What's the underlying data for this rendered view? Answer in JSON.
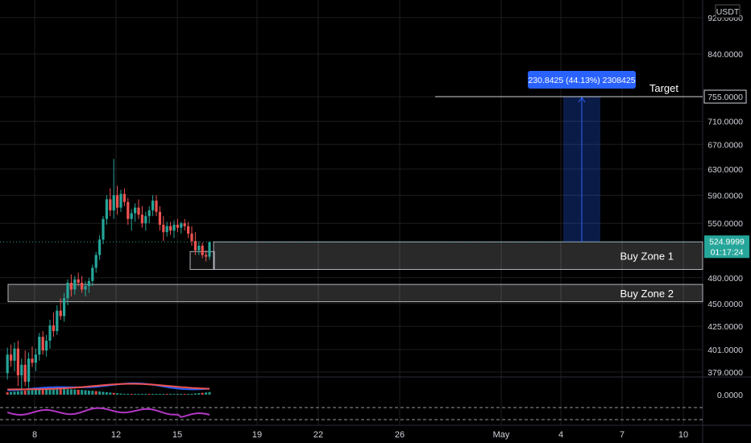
{
  "chart_data": {
    "type": "candlestick",
    "currency": "USDT",
    "last_price": "524.9999",
    "countdown": "01:17:24",
    "price_axis": {
      "labels": [
        "920.0000",
        "840.0000",
        "755.0000",
        "710.0000",
        "670.0000",
        "630.0000",
        "590.0000",
        "550.0000",
        "480.0000",
        "450.0000",
        "425.0000",
        "401.0000",
        "379.0000"
      ],
      "highlighted": "755.0000",
      "scale": "log"
    },
    "oscillator_axis_label": "0.0000",
    "date_axis": [
      "8",
      "12",
      "15",
      "19",
      "22",
      "26",
      "May",
      "4",
      "7",
      "10"
    ],
    "annotations": {
      "target_label": "Target",
      "target_price": 755,
      "measure_label": "230.8425 (44.13%) 2308425",
      "zones": [
        {
          "label": "Buy Zone 1",
          "top": 524.9999,
          "bottom": 490
        },
        {
          "label": "Buy Zone 2",
          "top": 472,
          "bottom": 452
        }
      ]
    },
    "grid": true,
    "colors": {
      "background": "#000000",
      "grid": "#1e1e1e",
      "up": "#26a69a",
      "down": "#ef5350",
      "measure": "#2962ff",
      "price_badge": "#26a69a",
      "oscillator": "#b237c4"
    },
    "candles": [
      {
        "o": 378,
        "h": 403,
        "l": 372,
        "c": 396
      },
      {
        "o": 396,
        "h": 406,
        "l": 384,
        "c": 390
      },
      {
        "o": 390,
        "h": 408,
        "l": 380,
        "c": 402
      },
      {
        "o": 402,
        "h": 410,
        "l": 366,
        "c": 376
      },
      {
        "o": 376,
        "h": 392,
        "l": 362,
        "c": 386
      },
      {
        "o": 386,
        "h": 400,
        "l": 366,
        "c": 370
      },
      {
        "o": 370,
        "h": 398,
        "l": 364,
        "c": 392
      },
      {
        "o": 392,
        "h": 404,
        "l": 384,
        "c": 388
      },
      {
        "o": 388,
        "h": 402,
        "l": 380,
        "c": 396
      },
      {
        "o": 396,
        "h": 418,
        "l": 390,
        "c": 414
      },
      {
        "o": 414,
        "h": 420,
        "l": 396,
        "c": 400
      },
      {
        "o": 400,
        "h": 416,
        "l": 394,
        "c": 410
      },
      {
        "o": 410,
        "h": 432,
        "l": 402,
        "c": 426
      },
      {
        "o": 426,
        "h": 440,
        "l": 414,
        "c": 420
      },
      {
        "o": 420,
        "h": 448,
        "l": 416,
        "c": 442
      },
      {
        "o": 442,
        "h": 456,
        "l": 432,
        "c": 436
      },
      {
        "o": 436,
        "h": 462,
        "l": 430,
        "c": 456
      },
      {
        "o": 456,
        "h": 478,
        "l": 448,
        "c": 474
      },
      {
        "o": 474,
        "h": 484,
        "l": 458,
        "c": 466
      },
      {
        "o": 466,
        "h": 482,
        "l": 460,
        "c": 478
      },
      {
        "o": 478,
        "h": 486,
        "l": 470,
        "c": 474
      },
      {
        "o": 474,
        "h": 482,
        "l": 462,
        "c": 466
      },
      {
        "o": 466,
        "h": 476,
        "l": 458,
        "c": 470
      },
      {
        "o": 470,
        "h": 480,
        "l": 462,
        "c": 476
      },
      {
        "o": 476,
        "h": 496,
        "l": 470,
        "c": 492
      },
      {
        "o": 492,
        "h": 512,
        "l": 486,
        "c": 508
      },
      {
        "o": 508,
        "h": 534,
        "l": 502,
        "c": 528
      },
      {
        "o": 528,
        "h": 560,
        "l": 522,
        "c": 556
      },
      {
        "o": 556,
        "h": 590,
        "l": 548,
        "c": 584
      },
      {
        "o": 584,
        "h": 600,
        "l": 560,
        "c": 568
      },
      {
        "o": 568,
        "h": 646,
        "l": 556,
        "c": 590
      },
      {
        "o": 590,
        "h": 604,
        "l": 562,
        "c": 572
      },
      {
        "o": 572,
        "h": 598,
        "l": 566,
        "c": 592
      },
      {
        "o": 592,
        "h": 600,
        "l": 574,
        "c": 580
      },
      {
        "o": 580,
        "h": 586,
        "l": 548,
        "c": 556
      },
      {
        "o": 556,
        "h": 570,
        "l": 540,
        "c": 564
      },
      {
        "o": 564,
        "h": 578,
        "l": 552,
        "c": 572
      },
      {
        "o": 572,
        "h": 584,
        "l": 556,
        "c": 562
      },
      {
        "o": 562,
        "h": 574,
        "l": 544,
        "c": 550
      },
      {
        "o": 550,
        "h": 566,
        "l": 540,
        "c": 560
      },
      {
        "o": 560,
        "h": 574,
        "l": 550,
        "c": 568
      },
      {
        "o": 568,
        "h": 590,
        "l": 560,
        "c": 582
      },
      {
        "o": 582,
        "h": 590,
        "l": 560,
        "c": 566
      },
      {
        "o": 566,
        "h": 574,
        "l": 540,
        "c": 548
      },
      {
        "o": 548,
        "h": 560,
        "l": 526,
        "c": 538
      },
      {
        "o": 538,
        "h": 552,
        "l": 532,
        "c": 546
      },
      {
        "o": 546,
        "h": 552,
        "l": 534,
        "c": 540
      },
      {
        "o": 540,
        "h": 554,
        "l": 530,
        "c": 548
      },
      {
        "o": 548,
        "h": 556,
        "l": 538,
        "c": 544
      },
      {
        "o": 544,
        "h": 552,
        "l": 536,
        "c": 550
      },
      {
        "o": 550,
        "h": 556,
        "l": 540,
        "c": 546
      },
      {
        "o": 546,
        "h": 552,
        "l": 530,
        "c": 536
      },
      {
        "o": 536,
        "h": 546,
        "l": 520,
        "c": 526
      },
      {
        "o": 526,
        "h": 538,
        "l": 508,
        "c": 514
      },
      {
        "o": 514,
        "h": 526,
        "l": 508,
        "c": 520
      },
      {
        "o": 520,
        "h": 524,
        "l": 504,
        "c": 508
      },
      {
        "o": 508,
        "h": 514,
        "l": 500,
        "c": 506
      },
      {
        "o": 506,
        "h": 524,
        "l": 502,
        "c": 524.9999
      }
    ]
  }
}
